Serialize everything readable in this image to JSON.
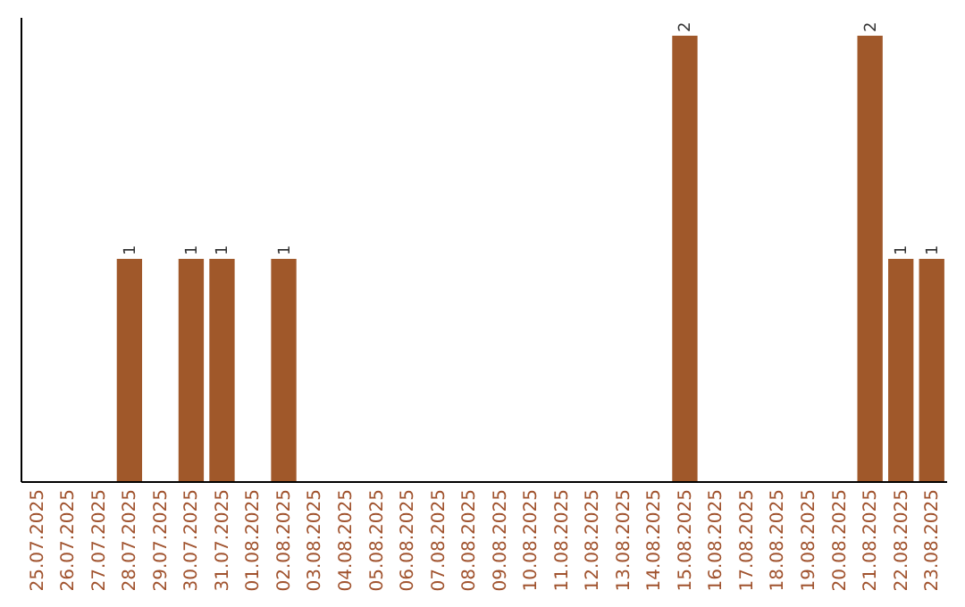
{
  "chart_data": {
    "type": "bar",
    "categories": [
      "25.07.2025",
      "26.07.2025",
      "27.07.2025",
      "28.07.2025",
      "29.07.2025",
      "30.07.2025",
      "31.07.2025",
      "01.08.2025",
      "02.08.2025",
      "03.08.2025",
      "04.08.2025",
      "05.08.2025",
      "06.08.2025",
      "07.08.2025",
      "08.08.2025",
      "09.08.2025",
      "10.08.2025",
      "11.08.2025",
      "12.08.2025",
      "13.08.2025",
      "14.08.2025",
      "15.08.2025",
      "16.08.2025",
      "17.08.2025",
      "18.08.2025",
      "19.08.2025",
      "20.08.2025",
      "21.08.2025",
      "22.08.2025",
      "23.08.2025"
    ],
    "values": [
      0,
      0,
      0,
      1,
      0,
      1,
      1,
      0,
      1,
      0,
      0,
      0,
      0,
      0,
      0,
      0,
      0,
      0,
      0,
      0,
      0,
      2,
      0,
      0,
      0,
      0,
      0,
      2,
      1,
      1
    ],
    "color": "#a0582a",
    "value_labels": [
      null,
      null,
      null,
      "1",
      null,
      "1",
      "1",
      null,
      "1",
      null,
      null,
      null,
      null,
      null,
      null,
      null,
      null,
      null,
      null,
      null,
      null,
      "2",
      null,
      null,
      null,
      null,
      null,
      "2",
      "1",
      "1"
    ]
  }
}
